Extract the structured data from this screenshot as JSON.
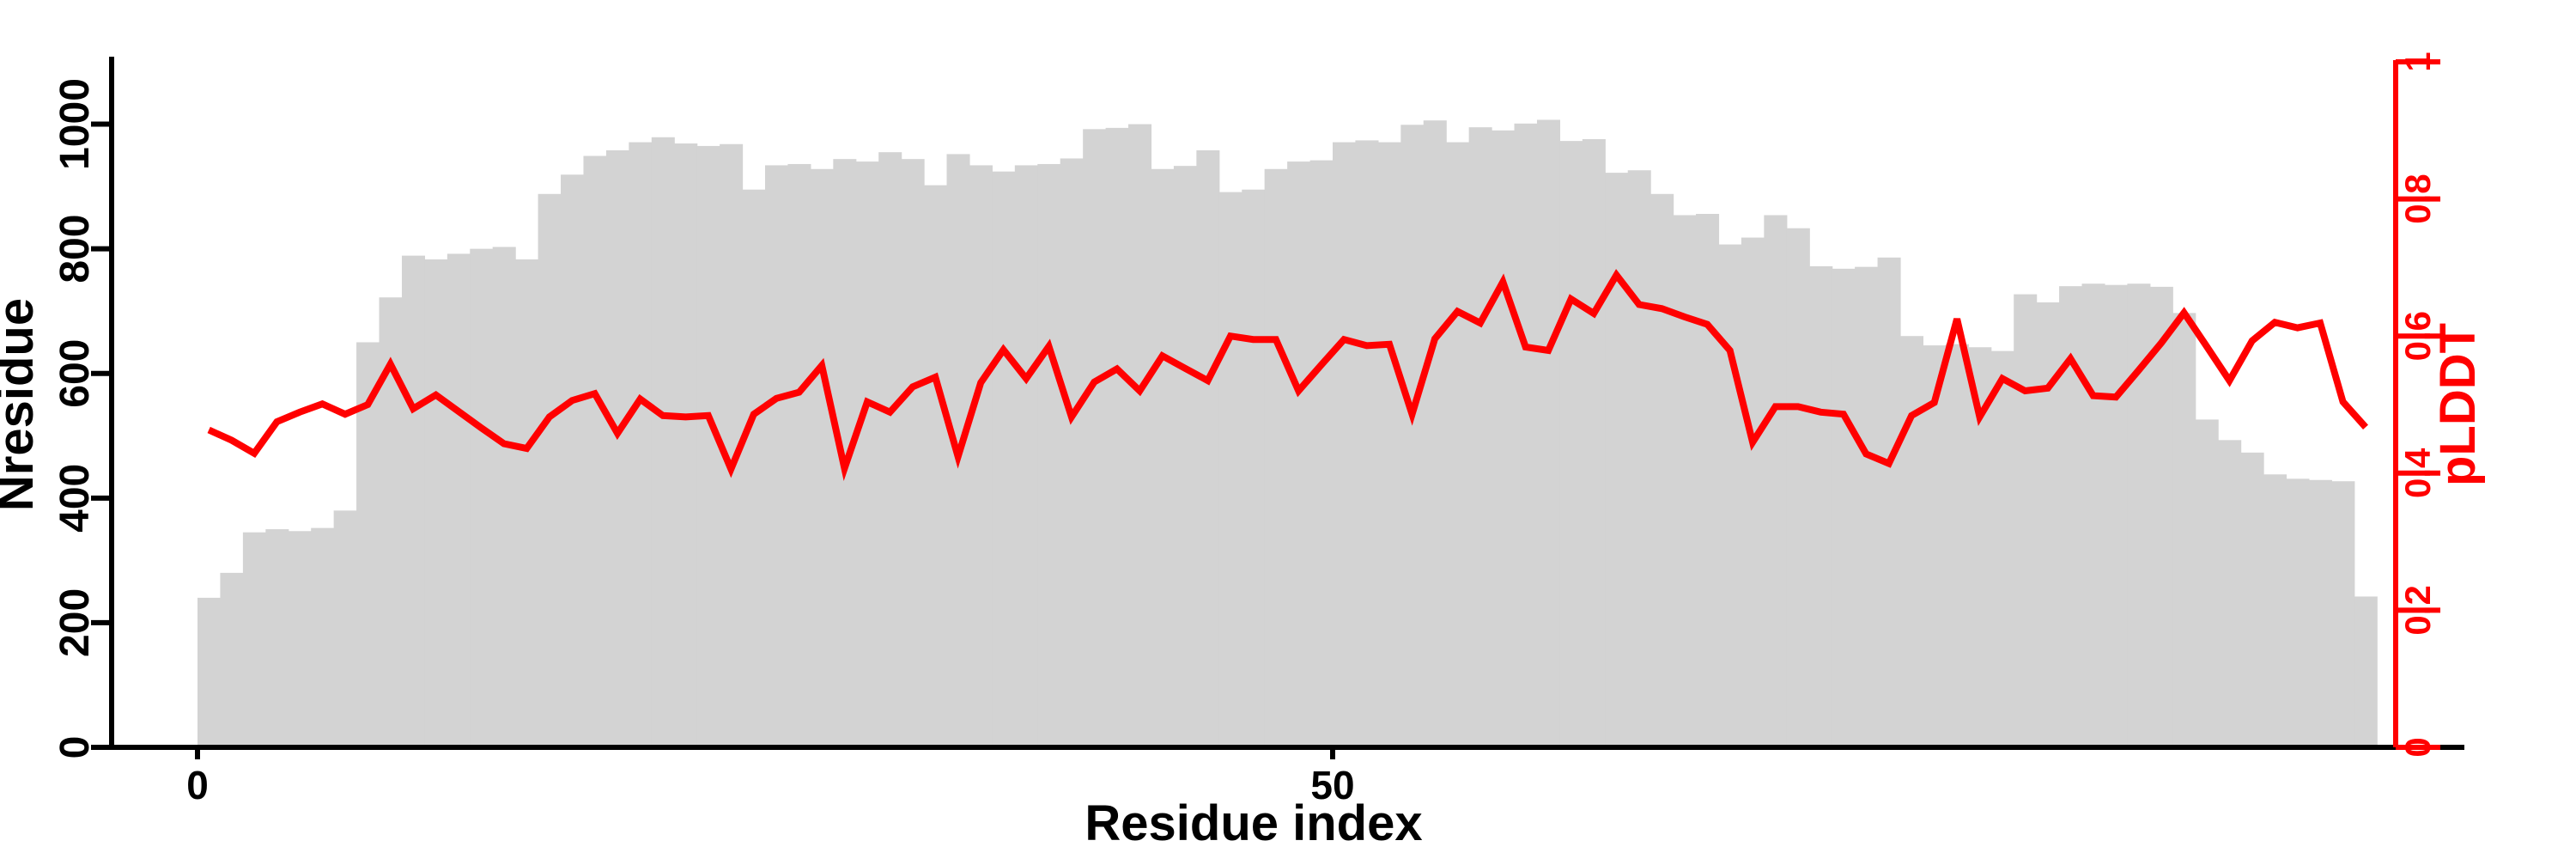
{
  "chart_data": {
    "type": "bar",
    "overlay": "line",
    "title": "",
    "xlabel": "Residue index",
    "grid": false,
    "legend_position": "none",
    "x_axis": {
      "n_bars": 96,
      "ticks": [
        {
          "v": 0,
          "label": "0"
        },
        {
          "v": 50,
          "label": "50"
        }
      ]
    },
    "left_axis": {
      "label": "Nresidue",
      "range": [
        0,
        1100
      ],
      "color": "#000000",
      "ticks": [
        {
          "v": 0,
          "label": "0"
        },
        {
          "v": 200,
          "label": "200"
        },
        {
          "v": 400,
          "label": "400"
        },
        {
          "v": 600,
          "label": "600"
        },
        {
          "v": 800,
          "label": "800"
        },
        {
          "v": 1000,
          "label": "1000"
        }
      ]
    },
    "right_axis": {
      "label": "pLDDT",
      "range": [
        0,
        1
      ],
      "color": "#ff0000",
      "ticks": [
        {
          "v": 0,
          "label": "0"
        },
        {
          "v": 0.2,
          "label": "0.2"
        },
        {
          "v": 0.4,
          "label": "0.4"
        },
        {
          "v": 0.6,
          "label": "0.6"
        },
        {
          "v": 0.8,
          "label": "0.8"
        },
        {
          "v": 1,
          "label": "1"
        }
      ]
    },
    "series": [
      {
        "name": "Nresidue",
        "type": "bar",
        "axis": "left",
        "color": "#d3d3d3",
        "values": [
          240,
          280,
          345,
          350,
          347,
          352,
          380,
          650,
          722,
          789,
          783,
          792,
          800,
          803,
          783,
          888,
          919,
          949,
          958,
          971,
          979,
          969,
          965,
          968,
          895,
          934,
          936,
          928,
          944,
          940,
          955,
          944,
          902,
          952,
          934,
          924,
          934,
          936,
          945,
          992,
          994,
          1000,
          928,
          933,
          958,
          891,
          895,
          928,
          940,
          942,
          971,
          974,
          971,
          999,
          1006,
          971,
          995,
          990,
          1001,
          1007,
          973,
          976,
          922,
          926,
          888,
          854,
          856,
          807,
          818,
          854,
          833,
          772,
          768,
          771,
          786,
          660,
          645,
          647,
          642,
          636,
          727,
          714,
          740,
          744,
          742,
          744,
          739,
          697,
          526,
          493,
          473,
          438,
          431,
          429,
          427,
          242
        ]
      },
      {
        "name": "pLDDT",
        "type": "line",
        "axis": "right",
        "color": "#ff0000",
        "stroke_width": 8,
        "values": [
          0.463,
          0.448,
          0.429,
          0.475,
          0.489,
          0.501,
          0.486,
          0.5,
          0.559,
          0.494,
          0.514,
          0.49,
          0.466,
          0.443,
          0.436,
          0.482,
          0.506,
          0.516,
          0.458,
          0.508,
          0.484,
          0.482,
          0.484,
          0.406,
          0.486,
          0.509,
          0.518,
          0.557,
          0.407,
          0.504,
          0.489,
          0.526,
          0.54,
          0.424,
          0.532,
          0.58,
          0.538,
          0.585,
          0.482,
          0.533,
          0.552,
          0.52,
          0.571,
          0.553,
          0.535,
          0.6,
          0.595,
          0.595,
          0.52,
          0.558,
          0.595,
          0.586,
          0.588,
          0.486,
          0.596,
          0.636,
          0.619,
          0.679,
          0.584,
          0.579,
          0.654,
          0.633,
          0.689,
          0.646,
          0.64,
          0.628,
          0.617,
          0.579,
          0.445,
          0.497,
          0.497,
          0.489,
          0.486,
          0.428,
          0.414,
          0.484,
          0.503,
          0.625,
          0.482,
          0.538,
          0.52,
          0.524,
          0.567,
          0.513,
          0.511,
          0.55,
          0.59,
          0.634,
          0.585,
          0.535,
          0.593,
          0.62,
          0.612,
          0.619,
          0.504,
          0.467
        ]
      }
    ]
  }
}
